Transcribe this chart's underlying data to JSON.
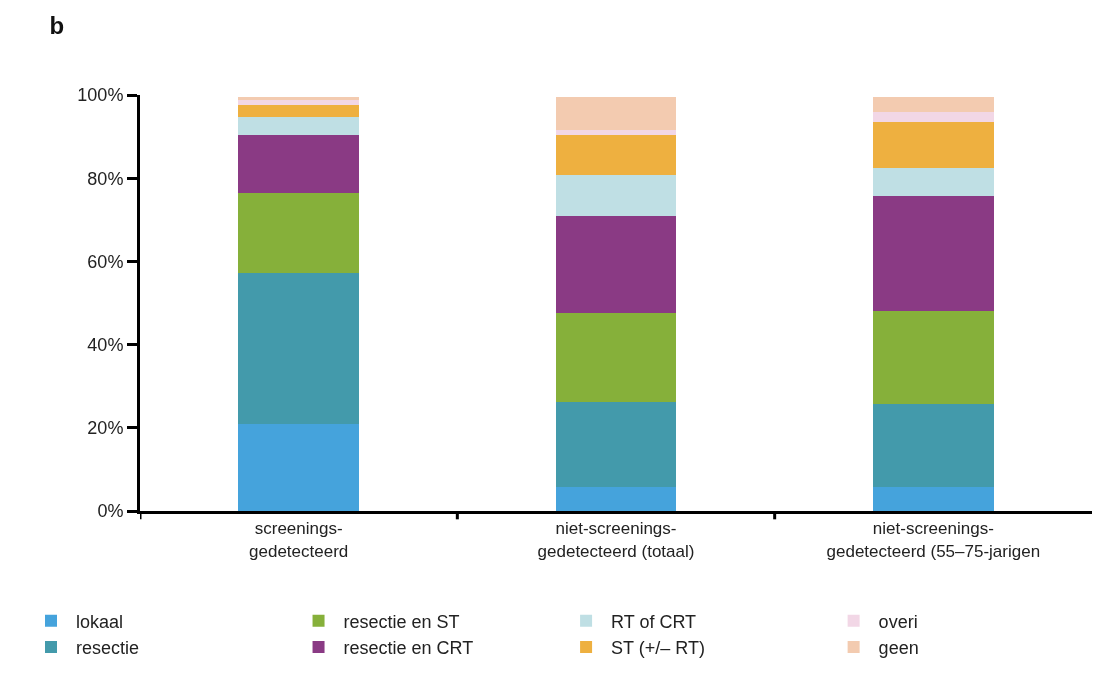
{
  "chart_data": {
    "type": "bar",
    "title": "b",
    "stacked": true,
    "categories": [
      "screenings-\ngedetecteerd",
      "niet-screenings-\ngedetecteerd (totaal)",
      "niet-screenings-\ngedetecteerd (55–75-jarigen"
    ],
    "series": [
      {
        "name": "lokaal",
        "color": "#45a3dc",
        "values": [
          20.8,
          5.7,
          5.7
        ]
      },
      {
        "name": "resectie",
        "color": "#439aab",
        "values": [
          36.3,
          20.6,
          20.1
        ]
      },
      {
        "name": "resectie en ST",
        "color": "#86b03a",
        "values": [
          19.4,
          21.3,
          22.2
        ]
      },
      {
        "name": "resectie en CRT",
        "color": "#8a3a84",
        "values": [
          13.9,
          23.4,
          27.8
        ]
      },
      {
        "name": "RT of CRT",
        "color": "#bfdfe4",
        "values": [
          4.3,
          9.8,
          6.7
        ]
      },
      {
        "name": "ST (+/– RT)",
        "color": "#eeb040",
        "values": [
          2.9,
          9.6,
          11.0
        ]
      },
      {
        "name": "overi",
        "color": "#f2d7e6",
        "values": [
          1.2,
          1.2,
          2.4
        ]
      },
      {
        "name": "geen",
        "color": "#f3cbb0",
        "values": [
          0.7,
          7.9,
          3.6
        ]
      }
    ],
    "ylim": [
      0,
      100
    ],
    "yticks": [
      {
        "value": 0,
        "label": "0%"
      },
      {
        "value": 20,
        "label": "20%"
      },
      {
        "value": 40,
        "label": "40%"
      },
      {
        "value": 60,
        "label": "60%"
      },
      {
        "value": 80,
        "label": "80%"
      },
      {
        "value": 100,
        "label": "100%"
      }
    ],
    "legend": "bottom"
  }
}
